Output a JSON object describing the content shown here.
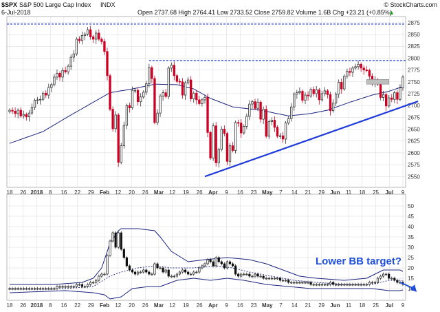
{
  "header": {
    "symbol": "$SPX",
    "name": "S&P 500 Large Cap Index",
    "exchange": "INDX",
    "date": "6-Jul-2018",
    "stats": "Open 2737.68  High 2764.41  Low 2733.52  Close 2759.82  Volume 1.6B  Chg +23.21 (+0.85%)",
    "watermark": "© StockCharts.com",
    "change_arrow": "▲"
  },
  "annotation": "Lower BB target?",
  "colors": {
    "up": "#333333",
    "down": "#cc0022",
    "ma": "#1a237e",
    "trend": "#1f3bd9",
    "annotation": "#1e4fd8",
    "grid": "#d8d8d8",
    "bb": "#1a237e"
  },
  "chart_data": [
    {
      "type": "candlestick",
      "title": "$SPX S&P 500 Large Cap Index INDX",
      "ylim": [
        2530,
        2885
      ],
      "y_ticks": [
        2550,
        2575,
        2600,
        2625,
        2650,
        2675,
        2700,
        2725,
        2750,
        2775,
        2800,
        2825,
        2850,
        2875
      ],
      "x_tick_labels": [
        "18",
        "26",
        "2018",
        "8",
        "16",
        "22",
        "29",
        "Feb",
        "12",
        "20",
        "26",
        "Mar",
        "12",
        "19",
        "26",
        "Apr",
        "9",
        "16",
        "23",
        "May",
        "7",
        "14",
        "21",
        "29",
        "Jun",
        "11",
        "18",
        "25",
        "Jul",
        "9"
      ],
      "x_bold_labels": [
        "2018",
        "Feb",
        "Mar",
        "Apr",
        "May",
        "Jun",
        "Jul"
      ],
      "closes": [
        2690,
        2688,
        2683,
        2690,
        2678,
        2681,
        2676,
        2684,
        2696,
        2711,
        2712,
        2713,
        2726,
        2722,
        2738,
        2744,
        2760,
        2768,
        2760,
        2774,
        2771,
        2783,
        2802,
        2809,
        2840,
        2837,
        2848,
        2851,
        2860,
        2845,
        2840,
        2853,
        2840,
        2835,
        2814,
        2763,
        2692,
        2651,
        2680,
        2580,
        2615,
        2658,
        2700,
        2695,
        2732,
        2732,
        2708,
        2718,
        2728,
        2746,
        2780,
        2757,
        2664,
        2684,
        2720,
        2727,
        2719,
        2779,
        2785,
        2763,
        2751,
        2750,
        2722,
        2748,
        2754,
        2714,
        2726,
        2712,
        2704,
        2712,
        2717,
        2643,
        2589,
        2657,
        2579,
        2607,
        2650,
        2641,
        2582,
        2615,
        2605,
        2664,
        2663,
        2642,
        2656,
        2677,
        2703,
        2708,
        2694,
        2707,
        2671,
        2692,
        2635,
        2666,
        2669,
        2654,
        2635,
        2636,
        2629,
        2663,
        2672,
        2697,
        2724,
        2727,
        2730,
        2711,
        2722,
        2720,
        2734,
        2725,
        2733,
        2712,
        2725,
        2731,
        2723,
        2689,
        2705,
        2724,
        2749,
        2735,
        2762,
        2772,
        2770,
        2779,
        2782,
        2787,
        2779,
        2775,
        2774,
        2762,
        2749,
        2754,
        2745,
        2717,
        2723,
        2699,
        2716,
        2713,
        2727,
        2713,
        2737,
        2760
      ],
      "ma50_samples": [
        [
          0,
          2620
        ],
        [
          12,
          2645
        ],
        [
          22,
          2680
        ],
        [
          36,
          2727
        ],
        [
          44,
          2735
        ],
        [
          52,
          2745
        ],
        [
          60,
          2744
        ],
        [
          66,
          2735
        ],
        [
          72,
          2715
        ],
        [
          80,
          2697
        ],
        [
          90,
          2690
        ],
        [
          100,
          2678
        ],
        [
          108,
          2683
        ],
        [
          114,
          2690
        ],
        [
          122,
          2707
        ],
        [
          130,
          2722
        ],
        [
          136,
          2730
        ],
        [
          141,
          2740
        ]
      ],
      "resistance_levels": [
        2872,
        2795
      ],
      "trendline": {
        "from": [
          70,
          2550
        ],
        "to": [
          143,
          2703
        ],
        "label": ""
      },
      "gray_box": {
        "from": [
          128,
          2745
        ],
        "to": [
          136,
          2755
        ]
      }
    },
    {
      "type": "line",
      "title": "",
      "ylim": [
        5,
        55
      ],
      "y_ticks": [
        10,
        15,
        20,
        25,
        30,
        35,
        40,
        45,
        50
      ],
      "series": [
        {
          "name": "",
          "values": [
            10,
            10,
            10,
            10,
            10,
            10,
            10,
            10,
            10,
            10,
            10,
            10,
            10,
            10,
            10,
            10,
            10,
            11,
            11,
            11,
            11,
            11,
            11,
            11,
            12,
            12,
            11,
            11,
            12,
            13,
            13,
            14,
            16,
            17,
            17,
            26,
            33,
            37,
            30,
            37,
            29,
            25,
            21,
            19,
            18,
            17,
            18,
            18,
            19,
            18,
            17,
            17,
            22,
            20,
            20,
            18,
            19,
            16,
            16,
            16,
            17,
            18,
            19,
            18,
            17,
            17,
            18,
            18,
            20,
            21,
            22,
            24,
            23,
            21,
            25,
            23,
            22,
            20,
            23,
            22,
            21,
            17,
            16,
            17,
            17,
            17,
            16,
            16,
            17,
            16,
            16,
            15,
            15,
            15,
            15,
            15,
            15,
            14,
            14,
            14,
            13,
            13,
            13,
            13,
            13,
            13,
            13,
            13,
            12,
            12,
            12,
            12,
            12,
            12,
            12,
            13,
            12,
            12,
            12,
            12,
            12,
            12,
            12,
            12,
            12,
            12,
            12,
            12,
            12,
            13,
            13,
            13,
            15,
            16,
            17,
            17,
            15,
            15,
            14,
            13,
            13,
            12
          ]
        }
      ],
      "bb_upper_samples": [
        [
          0,
          12
        ],
        [
          16,
          12
        ],
        [
          26,
          13
        ],
        [
          30,
          15
        ],
        [
          33,
          20
        ],
        [
          36,
          32
        ],
        [
          39,
          38
        ],
        [
          40,
          39
        ],
        [
          46,
          39
        ],
        [
          52,
          38
        ],
        [
          54,
          35
        ],
        [
          58,
          28
        ],
        [
          64,
          23
        ],
        [
          70,
          24
        ],
        [
          78,
          25
        ],
        [
          86,
          24
        ],
        [
          92,
          22
        ],
        [
          98,
          19
        ],
        [
          104,
          16
        ],
        [
          110,
          15
        ],
        [
          120,
          14
        ],
        [
          128,
          15
        ],
        [
          134,
          19
        ],
        [
          140,
          19
        ],
        [
          143,
          17
        ]
      ],
      "bb_lower_samples": [
        [
          0,
          8
        ],
        [
          20,
          9
        ],
        [
          30,
          8
        ],
        [
          34,
          7
        ],
        [
          36,
          5
        ],
        [
          40,
          6
        ],
        [
          44,
          10
        ],
        [
          50,
          11
        ],
        [
          54,
          11
        ],
        [
          60,
          14
        ],
        [
          66,
          15
        ],
        [
          72,
          14
        ],
        [
          78,
          15
        ],
        [
          84,
          14
        ],
        [
          92,
          12
        ],
        [
          100,
          11
        ],
        [
          108,
          10
        ],
        [
          120,
          10
        ],
        [
          130,
          10
        ],
        [
          136,
          9
        ],
        [
          140,
          9
        ],
        [
          143,
          10
        ]
      ],
      "bb_mid_samples": [
        [
          0,
          10
        ],
        [
          20,
          10
        ],
        [
          30,
          11
        ],
        [
          36,
          16
        ],
        [
          40,
          18
        ],
        [
          46,
          20
        ],
        [
          52,
          21
        ],
        [
          58,
          20
        ],
        [
          66,
          20
        ],
        [
          74,
          21
        ],
        [
          80,
          20
        ],
        [
          86,
          18
        ],
        [
          94,
          16
        ],
        [
          102,
          14
        ],
        [
          110,
          13
        ],
        [
          120,
          12
        ],
        [
          130,
          12
        ],
        [
          136,
          14
        ],
        [
          140,
          14
        ],
        [
          143,
          13
        ]
      ],
      "arrow": {
        "from": [
          140,
          13
        ],
        "to": [
          143,
          8
        ]
      }
    }
  ]
}
